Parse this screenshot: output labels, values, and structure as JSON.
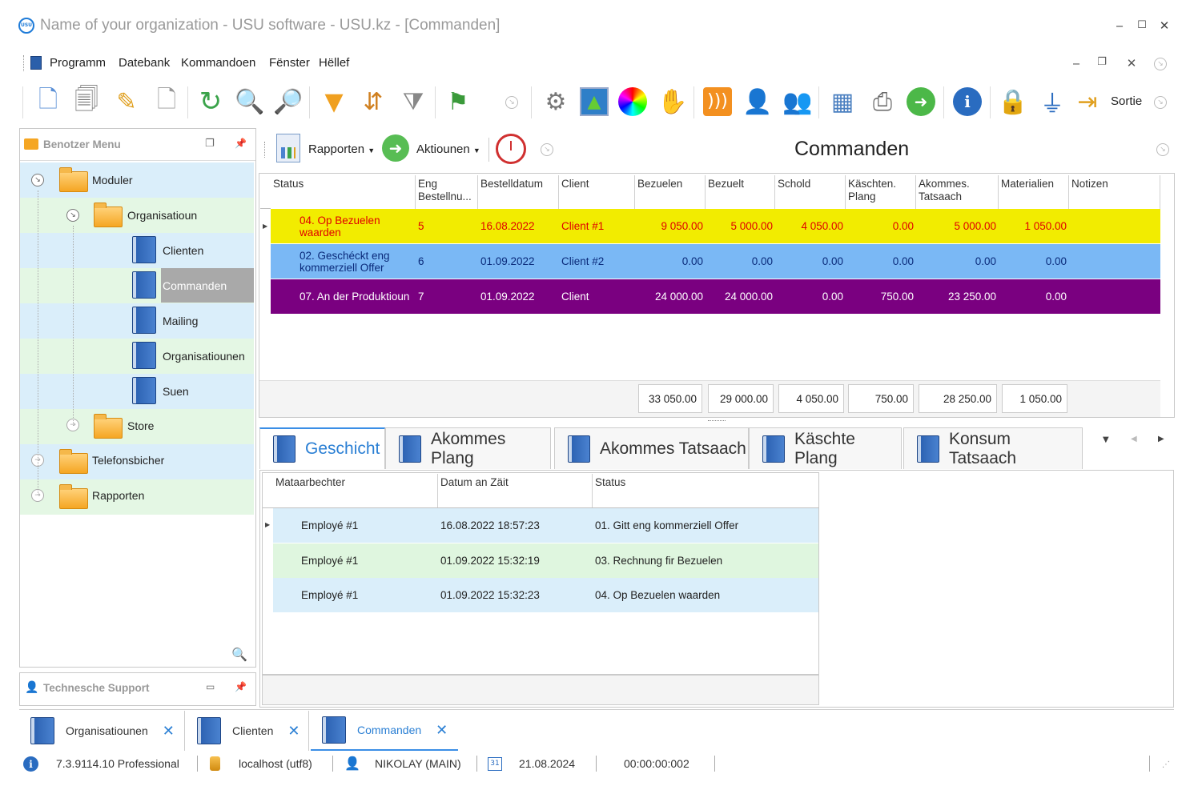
{
  "window": {
    "title": "Name of your organization - USU software - USU.kz - [Commanden]",
    "logo_text": "USU"
  },
  "menu": {
    "items": [
      "Programm",
      "Datebank",
      "Kommandoen",
      "Fënster",
      "Hëllef"
    ]
  },
  "toolbar": {
    "exit_label": "Sortie"
  },
  "left_panel": {
    "title": "Benotzer Menu",
    "tree": [
      {
        "label": "Moduler"
      },
      {
        "label": "Organisatioun"
      },
      {
        "label": "Clienten"
      },
      {
        "label": "Commanden"
      },
      {
        "label": "Mailing"
      },
      {
        "label": "Organisatiounen"
      },
      {
        "label": "Suen"
      },
      {
        "label": "Store"
      },
      {
        "label": "Telefonsbicher"
      },
      {
        "label": "Rapporten"
      }
    ],
    "support_title": "Technesche Support"
  },
  "doc_toolbar": {
    "reports_label": "Rapporten",
    "actions_label": "Aktiounen",
    "title": "Commanden"
  },
  "grid": {
    "columns": [
      "Status",
      "Eng Bestellnu...",
      "Bestelldatum",
      "Client",
      "Bezuelen",
      "Bezuelt",
      "Schold",
      "Käschten. Plang",
      "Akommes. Tatsaach",
      "Materialien",
      "Notizen"
    ],
    "rows": [
      {
        "status": "04. Op Bezuelen waarden",
        "num": "5",
        "date": "16.08.2022",
        "client": "Client #1",
        "pay": "9 050.00",
        "paid": "5 000.00",
        "debt": "4 050.00",
        "cost": "0.00",
        "income": "5 000.00",
        "materials": "1 050.00",
        "notes": ""
      },
      {
        "status": "02. Geschéckt eng kommerziell Offer",
        "num": "6",
        "date": "01.09.2022",
        "client": "Client #2",
        "pay": "0.00",
        "paid": "0.00",
        "debt": "0.00",
        "cost": "0.00",
        "income": "0.00",
        "materials": "0.00",
        "notes": ""
      },
      {
        "status": "07. An der Produktioun",
        "num": "7",
        "date": "01.09.2022",
        "client": "Client",
        "pay": "24 000.00",
        "paid": "24 000.00",
        "debt": "0.00",
        "cost": "750.00",
        "income": "23 250.00",
        "materials": "0.00",
        "notes": ""
      }
    ],
    "row_colors": [
      "#f2ec00",
      "#7ab8f5",
      "#7a0080"
    ],
    "totals": {
      "pay": "33 050.00",
      "paid": "29 000.00",
      "debt": "4 050.00",
      "cost": "750.00",
      "income": "28 250.00",
      "materials": "1 050.00"
    }
  },
  "detail_tabs": {
    "items": [
      "Geschicht",
      "Akommes Plang",
      "Akommes Tatsaach",
      "Käschte Plang",
      "Konsum Tatsaach"
    ]
  },
  "history": {
    "columns": [
      "Mataarbechter",
      "Datum an Zäit",
      "Status"
    ],
    "rows": [
      {
        "employee": "Employé #1",
        "datetime": "16.08.2022 18:57:23",
        "status": "01. Gitt eng kommerziell Offer"
      },
      {
        "employee": "Employé #1",
        "datetime": "01.09.2022 15:32:19",
        "status": "03. Rechnung fir Bezuelen"
      },
      {
        "employee": "Employé #1",
        "datetime": "01.09.2022 15:32:23",
        "status": "04. Op Bezuelen waarden"
      }
    ]
  },
  "bottom_tabs": {
    "items": [
      "Organisatiounen",
      "Clienten",
      "Commanden"
    ]
  },
  "status_bar": {
    "version": "7.3.9114.10 Professional",
    "db": "localhost (utf8)",
    "user": "NIKOLAY (MAIN)",
    "calendar_day": "31",
    "date": "21.08.2024",
    "timer": "00:00:00:002"
  }
}
